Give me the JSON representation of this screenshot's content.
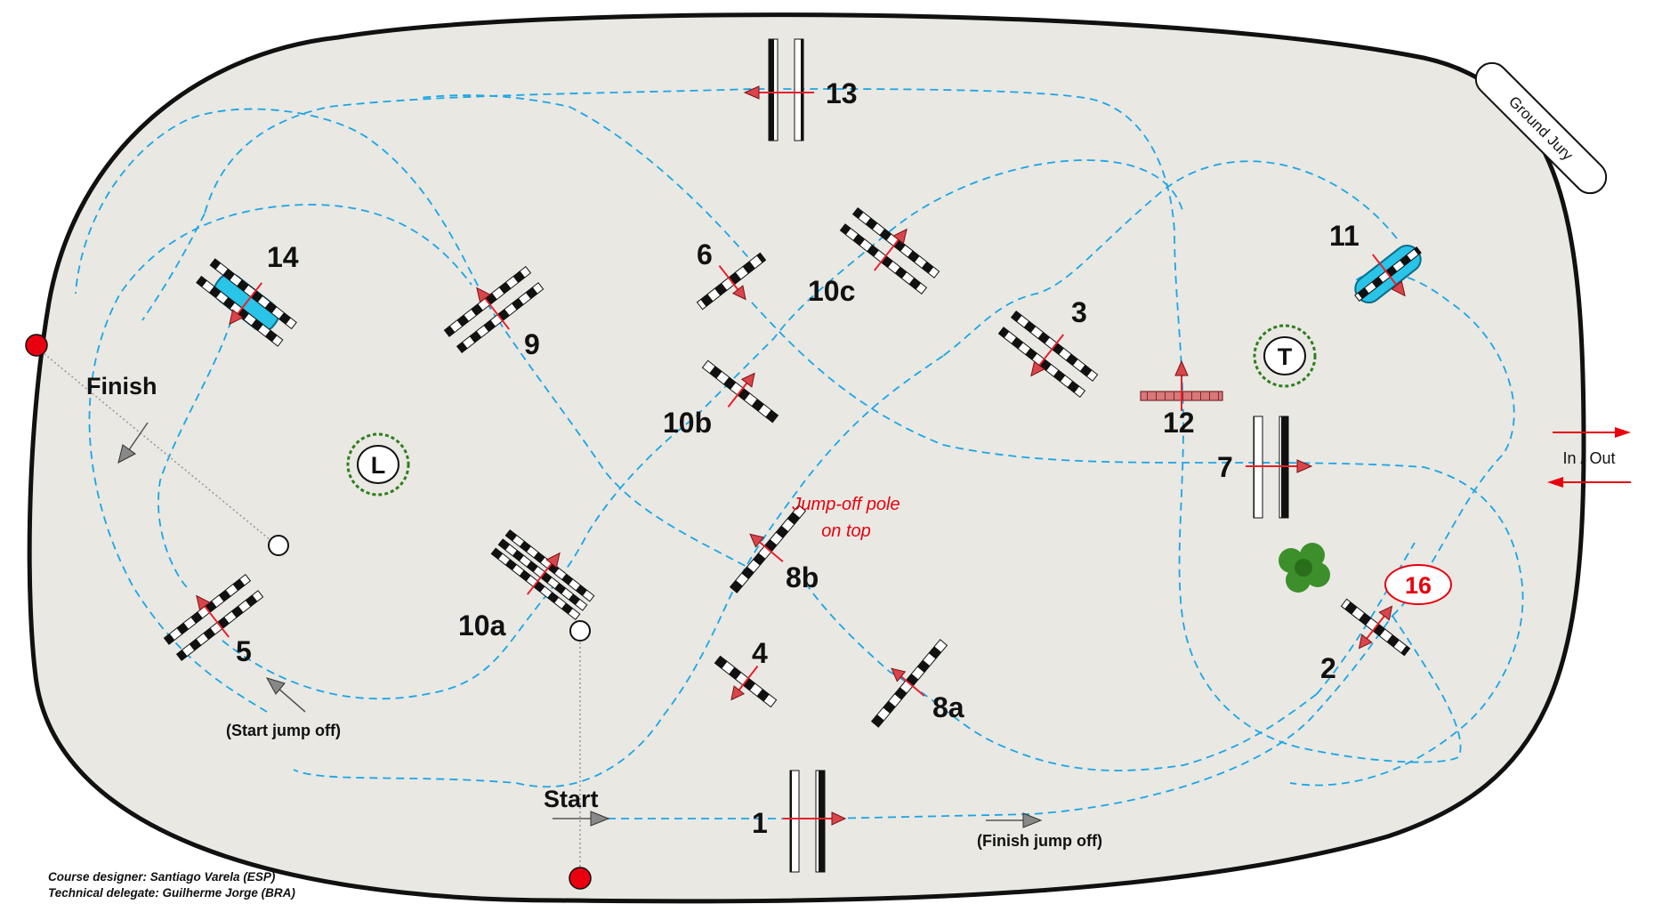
{
  "colors": {
    "arena_fill": "#e9e8e3",
    "arena_border": "#111111",
    "route": "#1aa6e6",
    "arrow": "#e8202a",
    "water": "#29c4e8",
    "water_edge": "#0d6b87",
    "tree": "#2f7d1e",
    "wall": "#d9777a"
  },
  "labels": {
    "finish": "Finish",
    "start": "Start",
    "start_jump_off": "(Start jump off)",
    "finish_jump_off": "(Finish jump off)",
    "jump_off_note_line1": "Jump-off pole",
    "jump_off_note_line2": "on top",
    "in_out": "In / Out",
    "ground_jury": "Ground Jury",
    "l_marker": "L",
    "t_marker": "T",
    "fence_16": "16"
  },
  "fences": {
    "f1": "1",
    "f2": "2",
    "f3": "3",
    "f4": "4",
    "f5": "5",
    "f6": "6",
    "f7": "7",
    "f8a": "8a",
    "f8b": "8b",
    "f9": "9",
    "f10a": "10a",
    "f10b": "10b",
    "f10c": "10c",
    "f11": "11",
    "f12": "12",
    "f13": "13",
    "f14": "14"
  },
  "credits": {
    "designer": "Course designer: Santiago Varela (ESP)",
    "delegate": "Technical delegate: Guilherme Jorge (BRA)"
  },
  "icons": {
    "arrow": "arrow-icon",
    "tree": "tree-icon",
    "bush": "bush-icon",
    "flag": "flag-icon"
  }
}
